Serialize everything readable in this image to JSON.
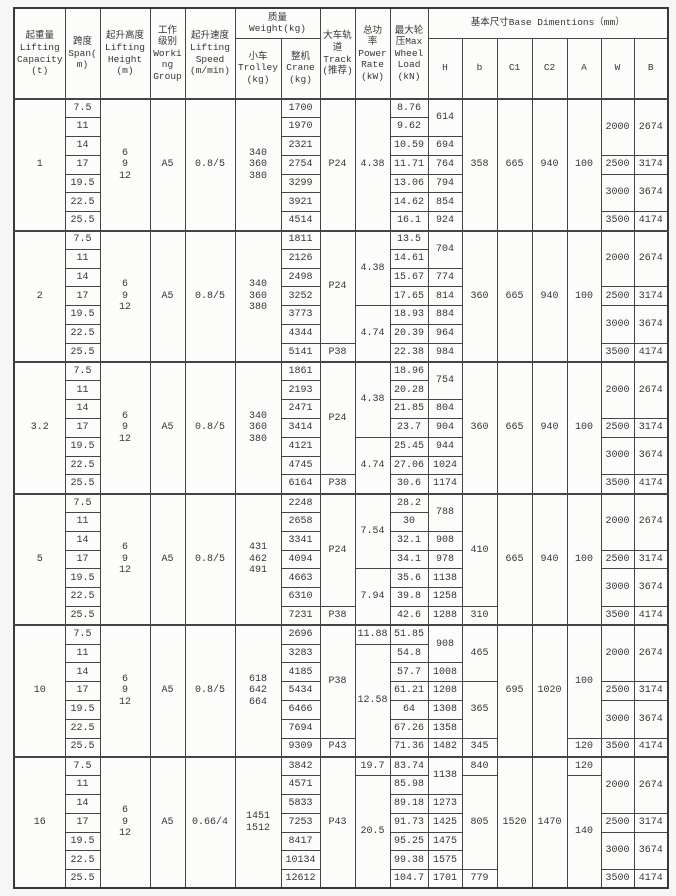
{
  "header": {
    "capacity": "起重量\nLifting\nCapacity\n(t)",
    "span": "跨度\nSpan(\nm)",
    "height": "起升高度\nLifting\nHeight\n(m)",
    "group": "工作\n级别\nWorki\nng\nGroup",
    "speed": "起升速度\nLifting\nSpeed\n(m/min)",
    "weight_group": "质量\nWeight(kg)",
    "trolley": "小车\nTrolley\n(kg)",
    "crane": "整机\nCrane\n(kg)",
    "track": "大车轨\n道\nTrack\n(推荐)",
    "power": "总功\n率\nPower\nRate\n(kW)",
    "wheel": "最大轮\n压Max\nWheel\nLoad\n(kN)",
    "base_group": "基本尺寸Base Dimentions（mm）",
    "dims": [
      "H",
      "b",
      "C1",
      "C2",
      "A",
      "W",
      "B"
    ]
  },
  "blocks": [
    {
      "capacity": "1",
      "spans": [
        "7.5",
        "11",
        "14",
        "17",
        "19.5",
        "22.5",
        "25.5"
      ],
      "lifting_height": "6\n9\n12",
      "working_group": "A5",
      "lifting_speed": "0.8/5",
      "trolley": "340\n360\n380",
      "crane": [
        "1700",
        "1970",
        "2321",
        "2754",
        "3299",
        "3921",
        "4514"
      ],
      "track": [
        {
          "v": "P24",
          "rows": 7
        }
      ],
      "power": [
        {
          "v": "4.38",
          "rows": 7
        }
      ],
      "wheel": [
        "8.76",
        "9.62",
        "10.59",
        "11.71",
        "13.06",
        "14.62",
        "16.1"
      ],
      "H": [
        {
          "v": "614",
          "rows": 2
        },
        {
          "v": "694",
          "rows": 1
        },
        {
          "v": "764",
          "rows": 1
        },
        {
          "v": "794",
          "rows": 1
        },
        {
          "v": "854",
          "rows": 1
        },
        {
          "v": "924",
          "rows": 1
        }
      ],
      "b": [
        {
          "v": "358",
          "rows": 7
        }
      ],
      "C1": [
        {
          "v": "665",
          "rows": 7
        }
      ],
      "C2": [
        {
          "v": "940",
          "rows": 7
        }
      ],
      "A": [
        {
          "v": "100",
          "rows": 7
        }
      ],
      "W": [
        {
          "v": "2000",
          "rows": 3
        },
        {
          "v": "2500",
          "rows": 1
        },
        {
          "v": "3000",
          "rows": 2
        },
        {
          "v": "3500",
          "rows": 1
        }
      ],
      "B": [
        {
          "v": "2674",
          "rows": 3
        },
        {
          "v": "3174",
          "rows": 1
        },
        {
          "v": "3674",
          "rows": 2
        },
        {
          "v": "4174",
          "rows": 1
        }
      ]
    },
    {
      "capacity": "2",
      "spans": [
        "7.5",
        "11",
        "14",
        "17",
        "19.5",
        "22.5",
        "25.5"
      ],
      "lifting_height": "6\n9\n12",
      "working_group": "A5",
      "lifting_speed": "0.8/5",
      "trolley": "340\n360\n380",
      "crane": [
        "1811",
        "2126",
        "2498",
        "3252",
        "3773",
        "4344",
        "5141"
      ],
      "track": [
        {
          "v": "P24",
          "rows": 6
        },
        {
          "v": "P38",
          "rows": 1
        }
      ],
      "power": [
        {
          "v": "4.38",
          "rows": 4
        },
        {
          "v": "4.74",
          "rows": 3
        }
      ],
      "wheel": [
        "13.5",
        "14.61",
        "15.67",
        "17.65",
        "18.93",
        "20.39",
        "22.38"
      ],
      "H": [
        {
          "v": "704",
          "rows": 2
        },
        {
          "v": "774",
          "rows": 1
        },
        {
          "v": "814",
          "rows": 1
        },
        {
          "v": "884",
          "rows": 1
        },
        {
          "v": "964",
          "rows": 1
        },
        {
          "v": "984",
          "rows": 1
        }
      ],
      "b": [
        {
          "v": "360",
          "rows": 7
        }
      ],
      "C1": [
        {
          "v": "665",
          "rows": 7
        }
      ],
      "C2": [
        {
          "v": "940",
          "rows": 7
        }
      ],
      "A": [
        {
          "v": "100",
          "rows": 7
        }
      ],
      "W": [
        {
          "v": "2000",
          "rows": 3
        },
        {
          "v": "2500",
          "rows": 1
        },
        {
          "v": "3000",
          "rows": 2
        },
        {
          "v": "3500",
          "rows": 1
        }
      ],
      "B": [
        {
          "v": "2674",
          "rows": 3
        },
        {
          "v": "3174",
          "rows": 1
        },
        {
          "v": "3674",
          "rows": 2
        },
        {
          "v": "4174",
          "rows": 1
        }
      ]
    },
    {
      "capacity": "3.2",
      "spans": [
        "7.5",
        "11",
        "14",
        "17",
        "19.5",
        "22.5",
        "25.5"
      ],
      "lifting_height": "6\n9\n12",
      "working_group": "A5",
      "lifting_speed": "0.8/5",
      "trolley": "340\n360\n380",
      "crane": [
        "1861",
        "2193",
        "2471",
        "3414",
        "4121",
        "4745",
        "6164"
      ],
      "track": [
        {
          "v": "P24",
          "rows": 6
        },
        {
          "v": "P38",
          "rows": 1
        }
      ],
      "power": [
        {
          "v": "4.38",
          "rows": 4
        },
        {
          "v": "4.74",
          "rows": 3
        }
      ],
      "wheel": [
        "18.96",
        "20.28",
        "21.85",
        "23.7",
        "25.45",
        "27.06",
        "30.6"
      ],
      "H": [
        {
          "v": "754",
          "rows": 2
        },
        {
          "v": "804",
          "rows": 1
        },
        {
          "v": "904",
          "rows": 1
        },
        {
          "v": "944",
          "rows": 1
        },
        {
          "v": "1024",
          "rows": 1
        },
        {
          "v": "1174",
          "rows": 1
        }
      ],
      "b": [
        {
          "v": "360",
          "rows": 7
        }
      ],
      "C1": [
        {
          "v": "665",
          "rows": 7
        }
      ],
      "C2": [
        {
          "v": "940",
          "rows": 7
        }
      ],
      "A": [
        {
          "v": "100",
          "rows": 7
        }
      ],
      "W": [
        {
          "v": "2000",
          "rows": 3
        },
        {
          "v": "2500",
          "rows": 1
        },
        {
          "v": "3000",
          "rows": 2
        },
        {
          "v": "3500",
          "rows": 1
        }
      ],
      "B": [
        {
          "v": "2674",
          "rows": 3
        },
        {
          "v": "3174",
          "rows": 1
        },
        {
          "v": "3674",
          "rows": 2
        },
        {
          "v": "4174",
          "rows": 1
        }
      ]
    },
    {
      "capacity": "5",
      "spans": [
        "7.5",
        "11",
        "14",
        "17",
        "19.5",
        "22.5",
        "25.5"
      ],
      "lifting_height": "6\n9\n12",
      "working_group": "A5",
      "lifting_speed": "0.8/5",
      "trolley": "431\n462\n491",
      "crane": [
        "2248",
        "2658",
        "3341",
        "4094",
        "4663",
        "6310",
        "7231"
      ],
      "track": [
        {
          "v": "P24",
          "rows": 6
        },
        {
          "v": "P38",
          "rows": 1
        }
      ],
      "power": [
        {
          "v": "7.54",
          "rows": 4
        },
        {
          "v": "7.94",
          "rows": 3
        }
      ],
      "wheel": [
        "28.2",
        "30",
        "32.1",
        "34.1",
        "35.6",
        "39.8",
        "42.6"
      ],
      "H": [
        {
          "v": "788",
          "rows": 2
        },
        {
          "v": "908",
          "rows": 1
        },
        {
          "v": "978",
          "rows": 1
        },
        {
          "v": "1138",
          "rows": 1
        },
        {
          "v": "1258",
          "rows": 1
        },
        {
          "v": "1288",
          "rows": 1
        }
      ],
      "b": [
        {
          "v": "410",
          "rows": 6
        },
        {
          "v": "310",
          "rows": 1
        }
      ],
      "C1": [
        {
          "v": "665",
          "rows": 7
        }
      ],
      "C2": [
        {
          "v": "940",
          "rows": 7
        }
      ],
      "A": [
        {
          "v": "100",
          "rows": 7
        }
      ],
      "W": [
        {
          "v": "2000",
          "rows": 3
        },
        {
          "v": "2500",
          "rows": 1
        },
        {
          "v": "3000",
          "rows": 2
        },
        {
          "v": "3500",
          "rows": 1
        }
      ],
      "B": [
        {
          "v": "2674",
          "rows": 3
        },
        {
          "v": "3174",
          "rows": 1
        },
        {
          "v": "3674",
          "rows": 2
        },
        {
          "v": "4174",
          "rows": 1
        }
      ]
    },
    {
      "capacity": "10",
      "spans": [
        "7.5",
        "11",
        "14",
        "17",
        "19.5",
        "22.5",
        "25.5"
      ],
      "lifting_height": "6\n9\n12",
      "working_group": "A5",
      "lifting_speed": "0.8/5",
      "trolley": "618\n642\n664",
      "crane": [
        "2696",
        "3283",
        "4185",
        "5434",
        "6466",
        "7694",
        "9309"
      ],
      "track": [
        {
          "v": "P38",
          "rows": 6
        },
        {
          "v": "P43",
          "rows": 1
        }
      ],
      "power": [
        {
          "v": "11.88",
          "rows": 1
        },
        {
          "v": "12.58",
          "rows": 6
        }
      ],
      "wheel": [
        "51.85",
        "54.8",
        "57.7",
        "61.21",
        "64",
        "67.26",
        "71.36"
      ],
      "H": [
        {
          "v": "908",
          "rows": 2
        },
        {
          "v": "1008",
          "rows": 1
        },
        {
          "v": "1208",
          "rows": 1
        },
        {
          "v": "1308",
          "rows": 1
        },
        {
          "v": "1358",
          "rows": 1
        },
        {
          "v": "1482",
          "rows": 1
        }
      ],
      "b": [
        {
          "v": "465",
          "rows": 3
        },
        {
          "v": "365",
          "rows": 3
        },
        {
          "v": "345",
          "rows": 1
        }
      ],
      "C1": [
        {
          "v": "695",
          "rows": 7
        }
      ],
      "C2": [
        {
          "v": "1020",
          "rows": 7
        }
      ],
      "A": [
        {
          "v": "100",
          "rows": 6
        },
        {
          "v": "120",
          "rows": 1
        }
      ],
      "W": [
        {
          "v": "2000",
          "rows": 3
        },
        {
          "v": "2500",
          "rows": 1
        },
        {
          "v": "3000",
          "rows": 2
        },
        {
          "v": "3500",
          "rows": 1
        }
      ],
      "B": [
        {
          "v": "2674",
          "rows": 3
        },
        {
          "v": "3174",
          "rows": 1
        },
        {
          "v": "3674",
          "rows": 2
        },
        {
          "v": "4174",
          "rows": 1
        }
      ]
    },
    {
      "capacity": "16",
      "spans": [
        "7.5",
        "11",
        "14",
        "17",
        "19.5",
        "22.5",
        "25.5"
      ],
      "lifting_height": "6\n9\n12",
      "working_group": "A5",
      "lifting_speed": "0.66/4",
      "trolley": "1451\n1512",
      "crane": [
        "3842",
        "4571",
        "5833",
        "7253",
        "8417",
        "10134",
        "12612"
      ],
      "track": [
        {
          "v": "P43",
          "rows": 7
        }
      ],
      "power": [
        {
          "v": "19.7",
          "rows": 1
        },
        {
          "v": "20.5",
          "rows": 6
        }
      ],
      "wheel": [
        "83.74",
        "85.98",
        "89.18",
        "91.73",
        "95.25",
        "99.38",
        "104.7"
      ],
      "H": [
        {
          "v": "1138",
          "rows": 2
        },
        {
          "v": "1273",
          "rows": 1
        },
        {
          "v": "1425",
          "rows": 1
        },
        {
          "v": "1475",
          "rows": 1
        },
        {
          "v": "1575",
          "rows": 1
        },
        {
          "v": "1701",
          "rows": 1
        }
      ],
      "b": [
        {
          "v": "840",
          "rows": 1
        },
        {
          "v": "805",
          "rows": 5
        },
        {
          "v": "779",
          "rows": 1
        }
      ],
      "C1": [
        {
          "v": "1520",
          "rows": 7
        }
      ],
      "C2": [
        {
          "v": "1470",
          "rows": 7
        }
      ],
      "A": [
        {
          "v": "120",
          "rows": 1
        },
        {
          "v": "140",
          "rows": 6
        }
      ],
      "W": [
        {
          "v": "2000",
          "rows": 3
        },
        {
          "v": "2500",
          "rows": 1
        },
        {
          "v": "3000",
          "rows": 2
        },
        {
          "v": "3500",
          "rows": 1
        }
      ],
      "B": [
        {
          "v": "2674",
          "rows": 3
        },
        {
          "v": "3174",
          "rows": 1
        },
        {
          "v": "3674",
          "rows": 2
        },
        {
          "v": "4174",
          "rows": 1
        }
      ]
    }
  ]
}
